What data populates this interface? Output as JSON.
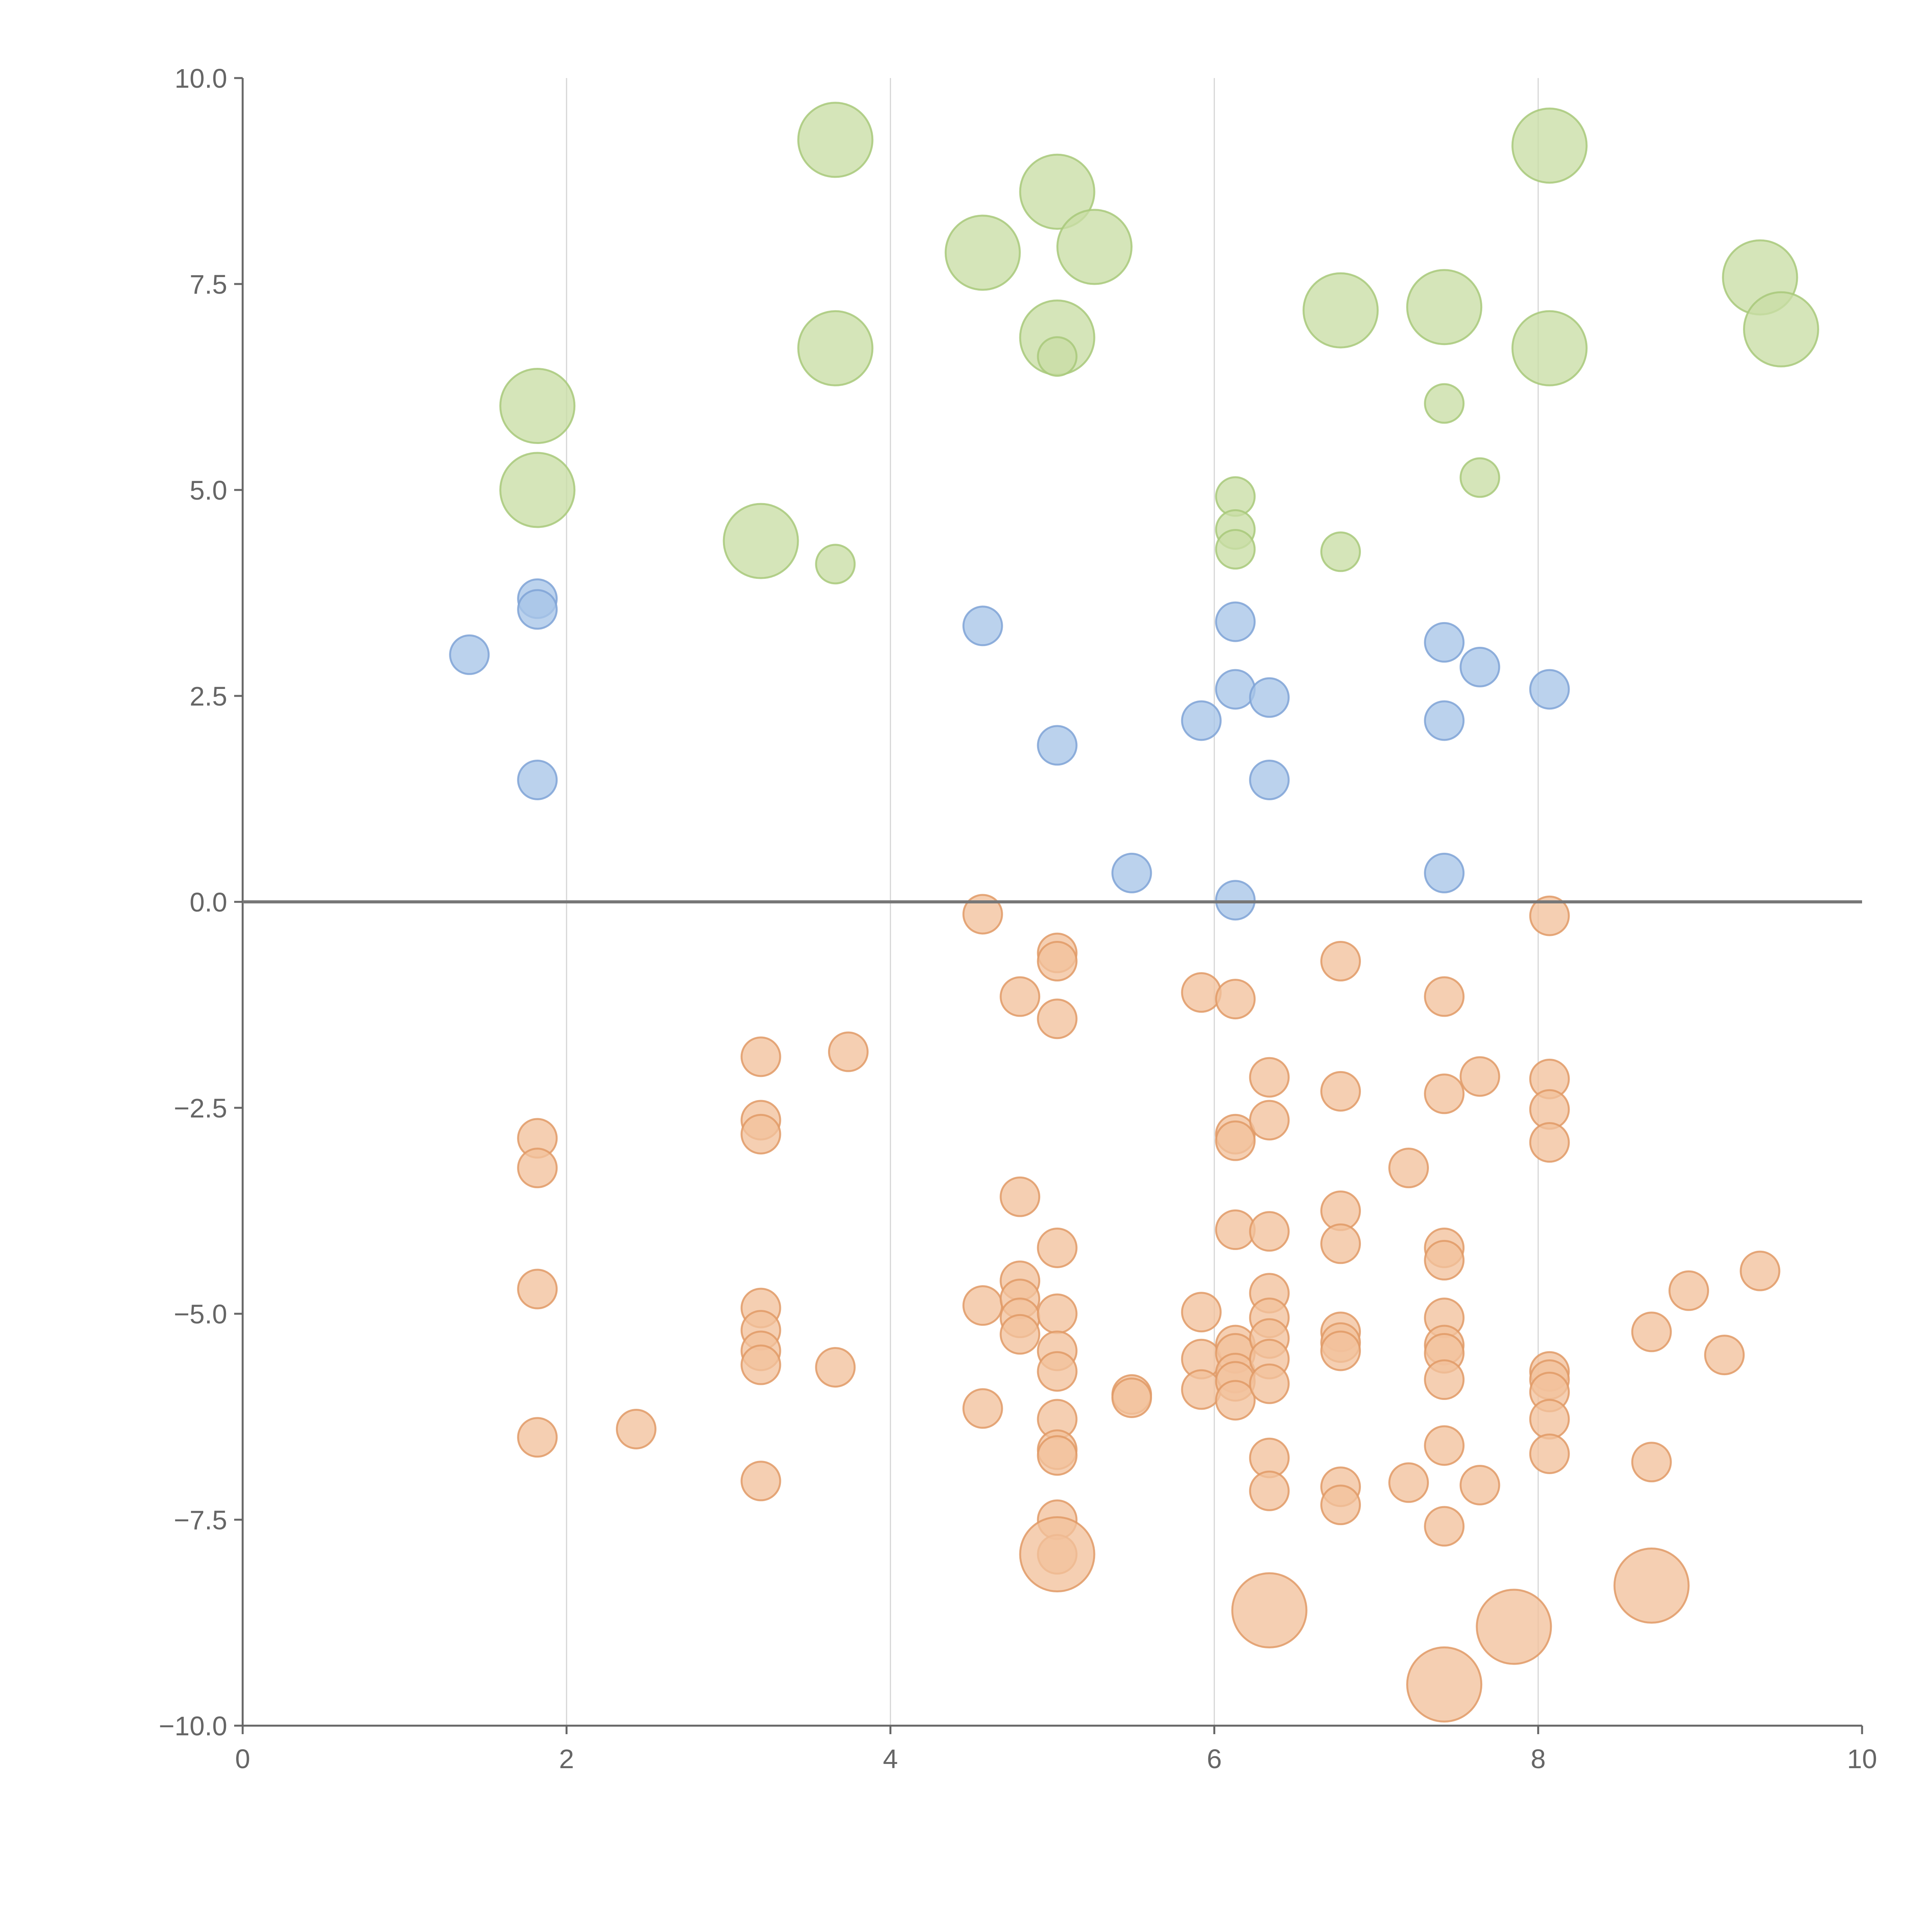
{
  "chart_data": {
    "type": "scatter",
    "title": "",
    "xlabel": "",
    "ylabel": "",
    "xlim": [
      0,
      10
    ],
    "ylim": [
      -10,
      10
    ],
    "grid": "vertical",
    "x_ticks": [
      "0",
      "2",
      "4",
      "6",
      "8",
      "10"
    ],
    "y_ticks": [
      "10.0",
      "7.5",
      "5.0",
      "2.5",
      "0.0",
      "−2.5",
      "−5.0",
      "−7.5",
      "−10.0"
    ],
    "series": [
      {
        "color": "#a8c5e8",
        "stroke": "#7fa3d6",
        "points": [
          [
            1.4,
            3.0,
            1
          ],
          [
            1.82,
            3.68,
            1
          ],
          [
            1.82,
            3.55,
            1
          ],
          [
            1.82,
            1.48,
            1
          ],
          [
            4.57,
            3.35,
            1
          ],
          [
            5.03,
            1.9,
            1
          ],
          [
            5.49,
            0.35,
            1
          ],
          [
            5.92,
            2.2,
            1
          ],
          [
            6.13,
            3.4,
            1
          ],
          [
            6.13,
            2.58,
            1
          ],
          [
            6.13,
            0.02,
            1
          ],
          [
            6.34,
            2.48,
            1
          ],
          [
            6.34,
            1.48,
            1
          ],
          [
            7.42,
            3.15,
            1
          ],
          [
            7.42,
            2.2,
            1
          ],
          [
            7.42,
            0.35,
            1
          ],
          [
            7.64,
            2.85,
            1
          ],
          [
            8.07,
            2.58,
            1
          ]
        ]
      },
      {
        "color": "#c9dea5",
        "stroke": "#a8c97a",
        "points": [
          [
            1.82,
            6.02,
            2
          ],
          [
            1.82,
            5.0,
            2
          ],
          [
            3.2,
            4.38,
            2
          ],
          [
            3.66,
            4.1,
            1
          ],
          [
            3.66,
            9.25,
            2
          ],
          [
            3.66,
            6.72,
            2
          ],
          [
            4.57,
            7.88,
            2
          ],
          [
            5.03,
            8.62,
            2
          ],
          [
            5.26,
            7.95,
            2
          ],
          [
            5.03,
            6.85,
            2
          ],
          [
            5.03,
            6.62,
            1
          ],
          [
            6.13,
            4.92,
            1
          ],
          [
            6.13,
            4.52,
            1
          ],
          [
            6.13,
            4.28,
            1
          ],
          [
            6.78,
            7.18,
            2
          ],
          [
            6.78,
            4.25,
            1
          ],
          [
            7.42,
            7.22,
            2
          ],
          [
            7.42,
            6.05,
            1
          ],
          [
            7.64,
            5.15,
            1
          ],
          [
            8.07,
            9.18,
            2
          ],
          [
            8.07,
            6.72,
            2
          ],
          [
            9.37,
            7.58,
            2
          ],
          [
            9.5,
            6.95,
            2
          ]
        ]
      },
      {
        "color": "#f2c19c",
        "stroke": "#e09a66",
        "points": [
          [
            1.82,
            -2.87,
            1
          ],
          [
            1.82,
            -3.23,
            1
          ],
          [
            1.82,
            -4.7,
            1
          ],
          [
            1.82,
            -6.5,
            1
          ],
          [
            2.43,
            -6.4,
            1
          ],
          [
            3.2,
            -1.88,
            1
          ],
          [
            3.2,
            -2.65,
            1
          ],
          [
            3.2,
            -2.82,
            1
          ],
          [
            3.2,
            -4.93,
            1
          ],
          [
            3.2,
            -5.2,
            1
          ],
          [
            3.2,
            -5.45,
            1
          ],
          [
            3.2,
            -5.62,
            1
          ],
          [
            3.2,
            -7.03,
            1
          ],
          [
            3.66,
            -5.65,
            1
          ],
          [
            3.74,
            -1.82,
            1
          ],
          [
            4.57,
            -0.15,
            1
          ],
          [
            4.57,
            -4.9,
            1
          ],
          [
            4.57,
            -6.15,
            1
          ],
          [
            4.8,
            -1.15,
            1
          ],
          [
            4.8,
            -3.58,
            1
          ],
          [
            4.8,
            -4.6,
            1
          ],
          [
            4.8,
            -4.82,
            1
          ],
          [
            4.8,
            -5.05,
            1
          ],
          [
            4.8,
            -5.25,
            1
          ],
          [
            5.03,
            -0.62,
            1
          ],
          [
            5.03,
            -0.72,
            1
          ],
          [
            5.03,
            -1.42,
            1
          ],
          [
            5.03,
            -4.2,
            1
          ],
          [
            5.03,
            -5.0,
            1
          ],
          [
            5.03,
            -5.45,
            1
          ],
          [
            5.03,
            -5.7,
            1
          ],
          [
            5.03,
            -6.28,
            1
          ],
          [
            5.03,
            -6.65,
            1
          ],
          [
            5.03,
            -6.72,
            1
          ],
          [
            5.03,
            -7.5,
            1
          ],
          [
            5.03,
            -7.92,
            1
          ],
          [
            5.03,
            -7.92,
            2
          ],
          [
            5.49,
            -5.98,
            1
          ],
          [
            5.49,
            -6.02,
            1
          ],
          [
            5.92,
            -1.1,
            1
          ],
          [
            5.92,
            -4.98,
            1
          ],
          [
            5.92,
            -5.55,
            1
          ],
          [
            5.92,
            -5.92,
            1
          ],
          [
            6.13,
            -1.18,
            1
          ],
          [
            6.13,
            -2.82,
            1
          ],
          [
            6.13,
            -2.9,
            1
          ],
          [
            6.13,
            -3.98,
            1
          ],
          [
            6.13,
            -5.38,
            1
          ],
          [
            6.13,
            -5.48,
            1
          ],
          [
            6.13,
            -5.72,
            1
          ],
          [
            6.13,
            -5.82,
            1
          ],
          [
            6.13,
            -6.05,
            1
          ],
          [
            6.34,
            -2.13,
            1
          ],
          [
            6.34,
            -2.65,
            1
          ],
          [
            6.34,
            -4.0,
            1
          ],
          [
            6.34,
            -4.75,
            1
          ],
          [
            6.34,
            -5.05,
            1
          ],
          [
            6.34,
            -5.3,
            1
          ],
          [
            6.34,
            -5.55,
            1
          ],
          [
            6.34,
            -5.85,
            1
          ],
          [
            6.34,
            -6.75,
            1
          ],
          [
            6.34,
            -7.15,
            1
          ],
          [
            6.34,
            -8.6,
            2
          ],
          [
            6.78,
            -0.72,
            1
          ],
          [
            6.78,
            -2.3,
            1
          ],
          [
            6.78,
            -3.75,
            1
          ],
          [
            6.78,
            -4.15,
            1
          ],
          [
            6.78,
            -5.22,
            1
          ],
          [
            6.78,
            -5.35,
            1
          ],
          [
            6.78,
            -5.45,
            1
          ],
          [
            6.78,
            -7.1,
            1
          ],
          [
            6.78,
            -7.32,
            1
          ],
          [
            7.2,
            -3.23,
            1
          ],
          [
            7.2,
            -7.05,
            1
          ],
          [
            7.42,
            -1.15,
            1
          ],
          [
            7.42,
            -2.33,
            1
          ],
          [
            7.42,
            -4.2,
            1
          ],
          [
            7.42,
            -4.35,
            1
          ],
          [
            7.42,
            -5.05,
            1
          ],
          [
            7.42,
            -5.38,
            1
          ],
          [
            7.42,
            -5.48,
            1
          ],
          [
            7.42,
            -5.8,
            1
          ],
          [
            7.42,
            -6.6,
            1
          ],
          [
            7.42,
            -7.58,
            1
          ],
          [
            7.42,
            -9.5,
            2
          ],
          [
            7.64,
            -2.12,
            1
          ],
          [
            7.64,
            -7.08,
            1
          ],
          [
            7.85,
            -8.8,
            2
          ],
          [
            8.07,
            -0.17,
            1
          ],
          [
            8.07,
            -2.15,
            1
          ],
          [
            8.07,
            -2.52,
            1
          ],
          [
            8.07,
            -2.92,
            1
          ],
          [
            8.07,
            -5.7,
            1
          ],
          [
            8.07,
            -5.8,
            1
          ],
          [
            8.07,
            -5.95,
            1
          ],
          [
            8.07,
            -6.28,
            1
          ],
          [
            8.07,
            -6.7,
            1
          ],
          [
            8.7,
            -5.22,
            1
          ],
          [
            8.7,
            -6.8,
            1
          ],
          [
            8.7,
            -8.3,
            2
          ],
          [
            8.93,
            -4.72,
            1
          ],
          [
            9.15,
            -5.5,
            1
          ],
          [
            9.37,
            -4.48,
            1
          ]
        ]
      }
    ]
  }
}
